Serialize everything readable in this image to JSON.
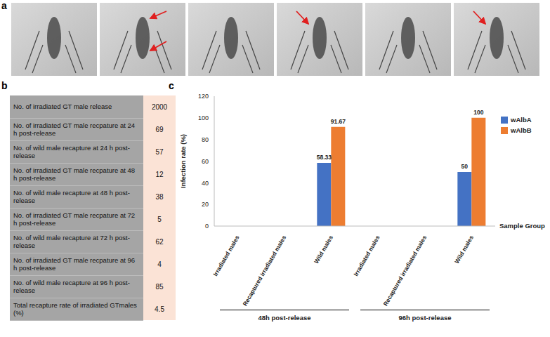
{
  "panel_labels": [
    "a",
    "b",
    "c"
  ],
  "photos": {
    "arrows": [
      0,
      2,
      0,
      1,
      0,
      1
    ]
  },
  "table": {
    "rows": [
      [
        "No. of irradiated GT male release",
        2000
      ],
      [
        "No. of irradiated GT male recpature at 24 h post-release",
        69
      ],
      [
        "No. of wild male recapture at 24 h post-release",
        57
      ],
      [
        "No. of irradiated GT male recpature at 48 h post-release",
        12
      ],
      [
        "No. of wild male recapture at 48 h post-release",
        38
      ],
      [
        "No. of irradiated GT male recpature at 72 h post-release",
        5
      ],
      [
        "No. of wild male recapture at 72 h post-release",
        62
      ],
      [
        "No. of irradiated GT male recpature at 96 h post-release",
        4
      ],
      [
        "No. of wild male recapture at 96 h post-release",
        85
      ],
      [
        "Total recapture rate of irradiated GTmales (%)",
        4.5
      ]
    ]
  },
  "chart_data": {
    "type": "bar",
    "ylabel": "Infection rate (%)",
    "xlabel": "Sample Group",
    "categories": [
      "Irradiated males",
      "Recaptured irradiated males",
      "Wild males",
      "Irradiated males",
      "Recaptured irradiated males",
      "Wild males"
    ],
    "series": [
      {
        "name": "wAlbA",
        "color": "#4472c4",
        "values": [
          0,
          0,
          58.33,
          0,
          0,
          50
        ]
      },
      {
        "name": "wAlbB",
        "color": "#ed7d31",
        "values": [
          0,
          0,
          91.67,
          0,
          0,
          100
        ]
      }
    ],
    "groups": [
      {
        "label": "48h post-release",
        "size": 3
      },
      {
        "label": "96h post-release",
        "size": 3
      }
    ],
    "ylim": [
      0,
      120
    ],
    "yticks": [
      0,
      20,
      40,
      60,
      80,
      100,
      120
    ],
    "grid": false,
    "data_labels": true,
    "legend": "right"
  }
}
